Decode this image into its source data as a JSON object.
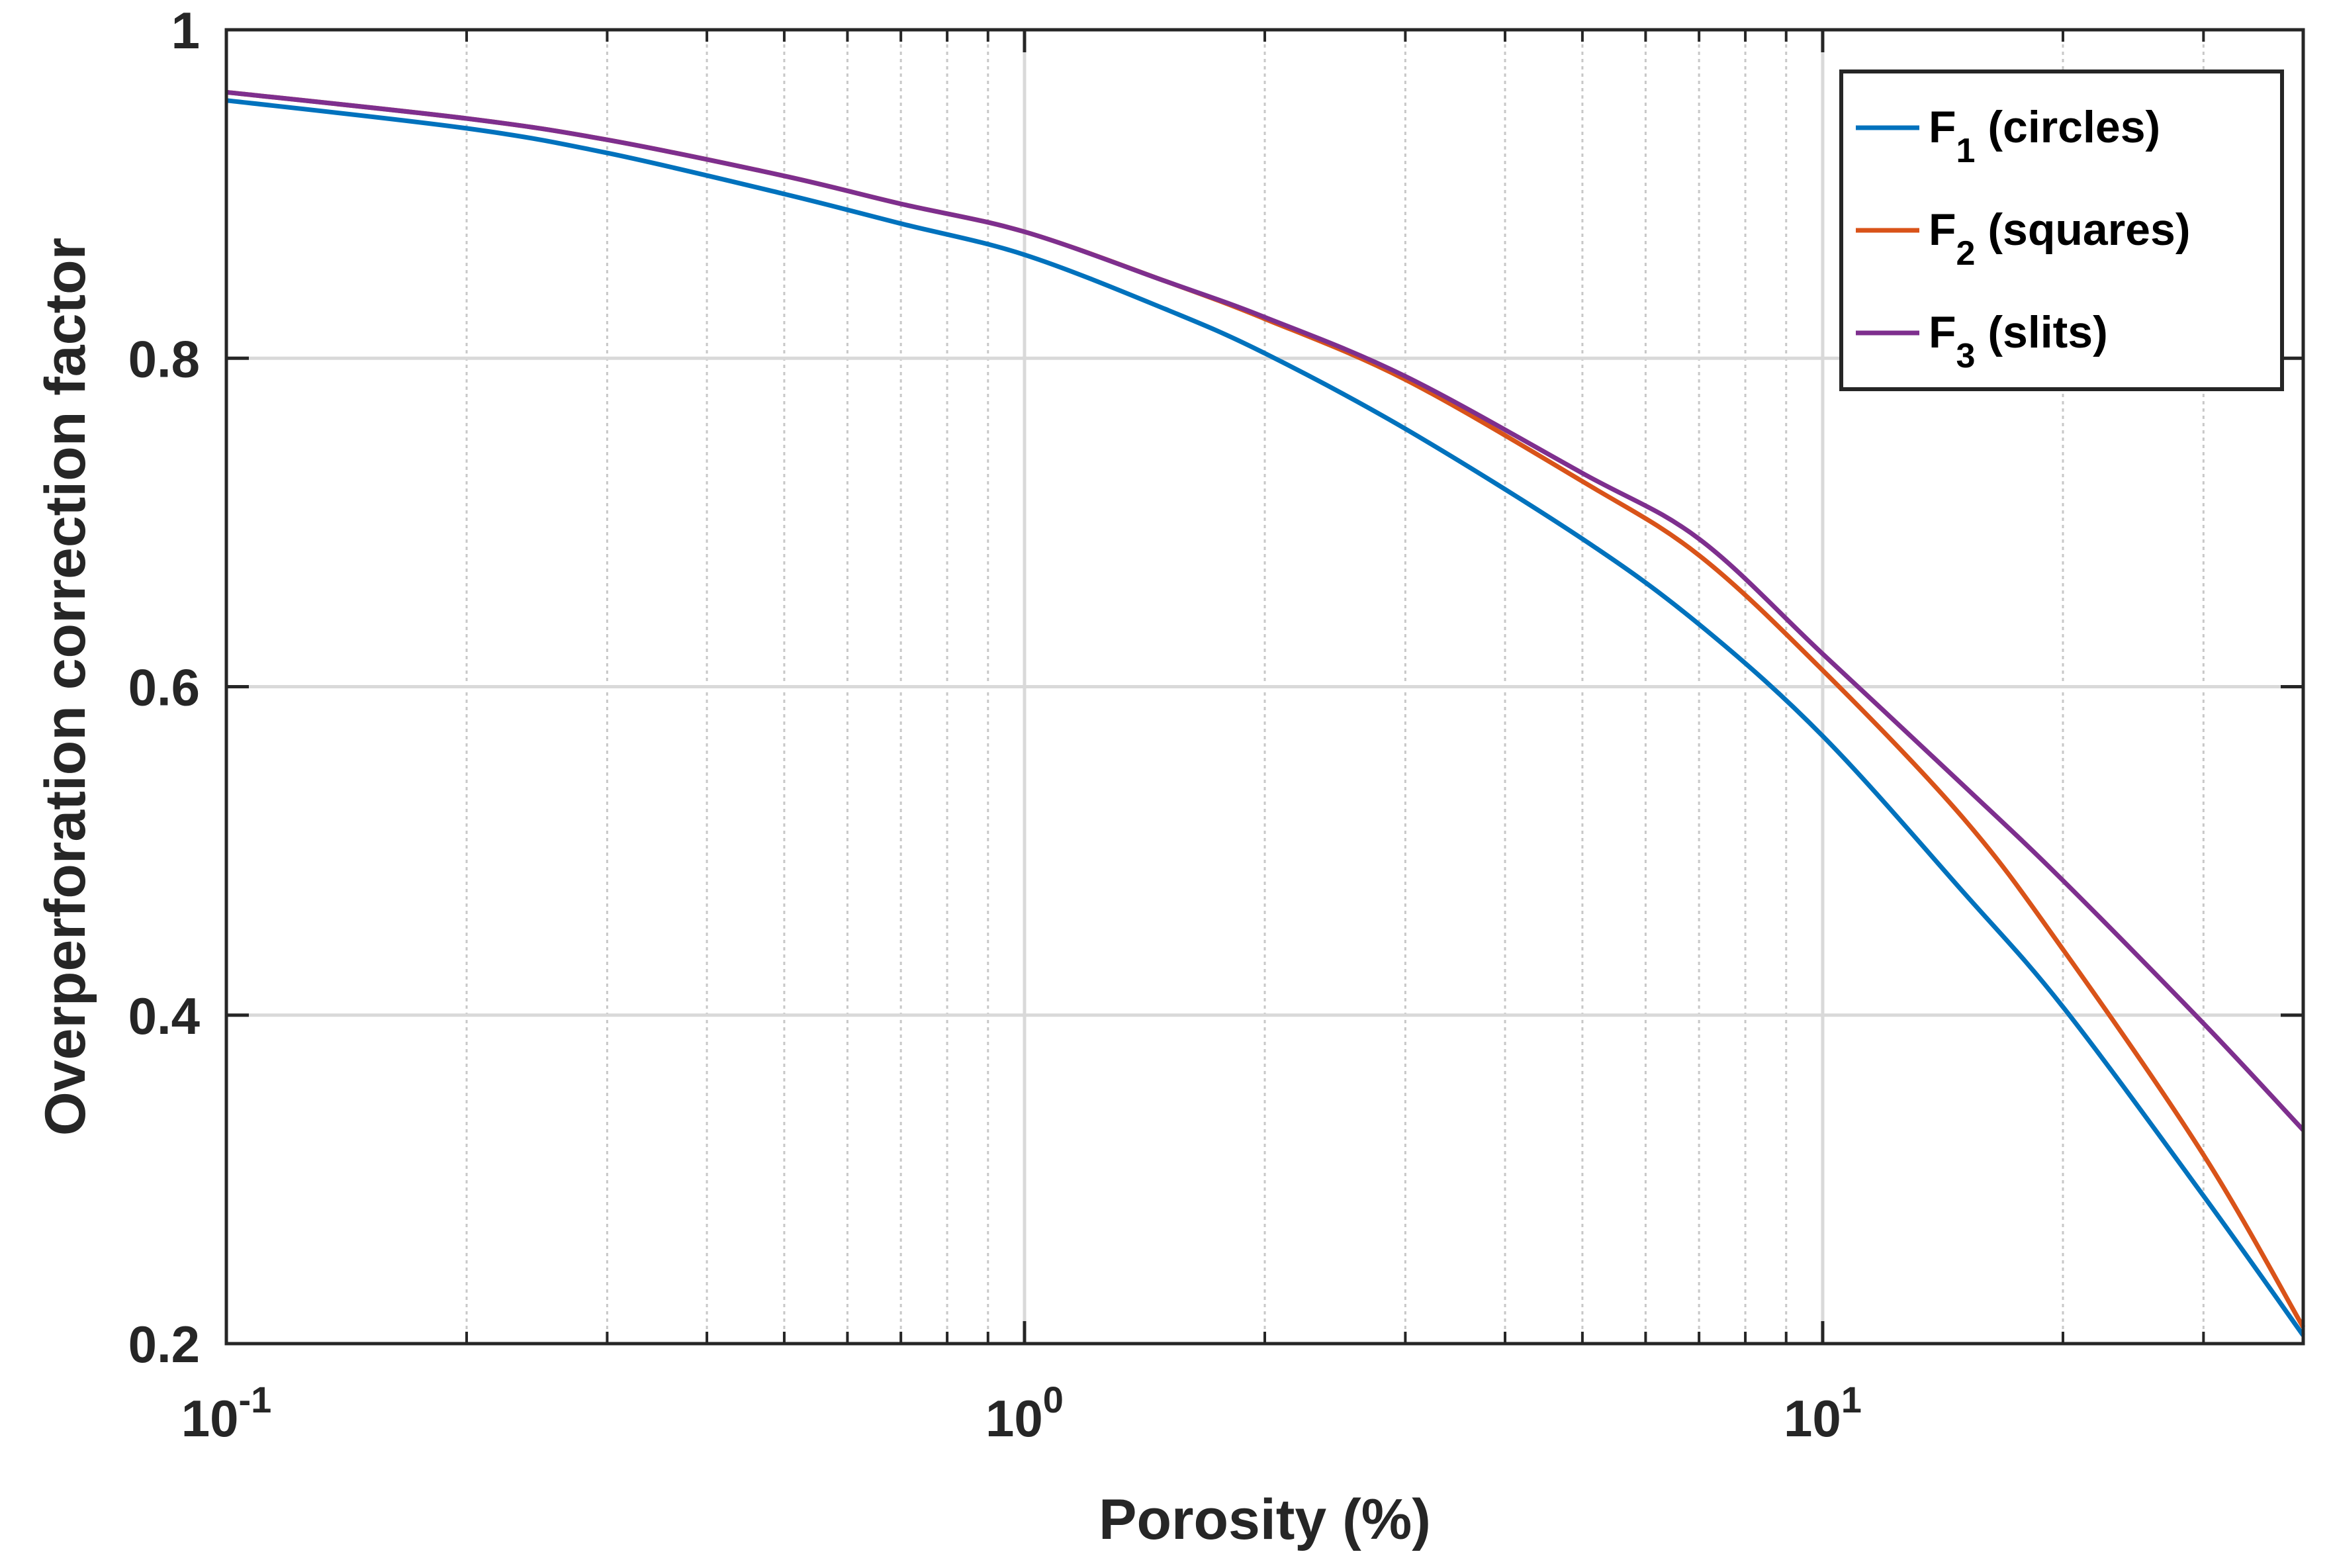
{
  "chart_data": {
    "type": "line",
    "title": "",
    "xlabel": "Porosity (%)",
    "ylabel": "Overperforation correction factor",
    "xscale": "log",
    "xlim": [
      0.1,
      40
    ],
    "ylim": [
      0.2,
      1
    ],
    "grid": true,
    "legend_position": "top-right",
    "x_ticks": [
      {
        "value": 0.1,
        "base": "10",
        "exp": "-1"
      },
      {
        "value": 1,
        "base": "10",
        "exp": "0"
      },
      {
        "value": 10,
        "base": "10",
        "exp": "1"
      }
    ],
    "y_ticks": [
      {
        "value": 0.2,
        "label": "0.2"
      },
      {
        "value": 0.4,
        "label": "0.4"
      },
      {
        "value": 0.6,
        "label": "0.6"
      },
      {
        "value": 0.8,
        "label": "0.8"
      },
      {
        "value": 1.0,
        "label": "1"
      }
    ],
    "series": [
      {
        "name": "F1 (circles)",
        "legend_main": "F",
        "legend_sub": "1",
        "legend_rest": " (circles)",
        "color": "#0072BD",
        "x": [
          0.1,
          0.2,
          0.3,
          0.5,
          0.7,
          1,
          1.5,
          2,
          3,
          5,
          7,
          10,
          15,
          20,
          30,
          40
        ],
        "y": [
          0.957,
          0.94,
          0.925,
          0.9,
          0.882,
          0.863,
          0.83,
          0.803,
          0.757,
          0.69,
          0.638,
          0.57,
          0.475,
          0.405,
          0.29,
          0.205
        ]
      },
      {
        "name": "F2 (squares)",
        "legend_main": "F",
        "legend_sub": "2",
        "legend_rest": " (squares)",
        "color": "#D95319",
        "x": [
          0.1,
          0.2,
          0.3,
          0.5,
          0.7,
          1,
          1.5,
          2,
          3,
          5,
          7,
          10,
          15,
          20,
          30,
          40
        ],
        "y": [
          0.962,
          0.946,
          0.933,
          0.911,
          0.894,
          0.877,
          0.847,
          0.824,
          0.787,
          0.725,
          0.68,
          0.61,
          0.52,
          0.44,
          0.315,
          0.21
        ]
      },
      {
        "name": "F3 (slits)",
        "legend_main": "F",
        "legend_sub": "3",
        "legend_rest": " (slits)",
        "color": "#7E2F8E",
        "x": [
          0.1,
          0.2,
          0.3,
          0.5,
          0.7,
          1,
          1.5,
          2,
          3,
          5,
          7,
          10,
          15,
          20,
          30,
          40
        ],
        "y": [
          0.962,
          0.946,
          0.933,
          0.911,
          0.894,
          0.877,
          0.847,
          0.825,
          0.789,
          0.73,
          0.69,
          0.62,
          0.54,
          0.482,
          0.395,
          0.33
        ]
      }
    ]
  }
}
